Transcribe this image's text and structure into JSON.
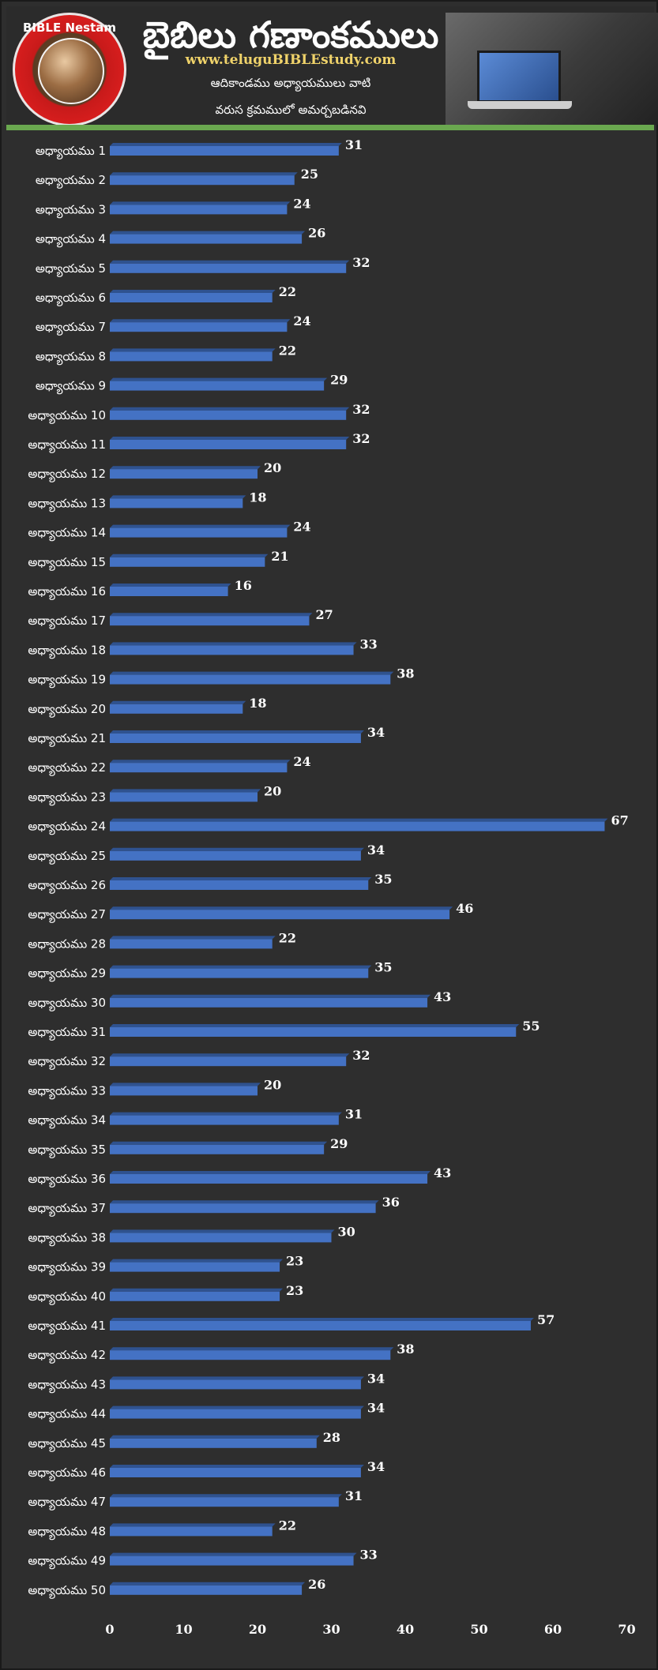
{
  "header": {
    "logo_text": "BIBLE Nestam",
    "title": "బైబిలు గణాంకములు",
    "site_url": "www.teluguBIBLEstudy.com",
    "subtitle_line1": "ఆదికాండము అధ్యాయములు వాటి",
    "subtitle_line2": "వరుస క్రమములో అమర్చబడినవి"
  },
  "colors": {
    "background": "#2e2e2e",
    "bar": "#4472c4",
    "bar_top": "#2f528f",
    "divider": "#6aa84f",
    "url": "#f0d36a"
  },
  "chart_data": {
    "type": "bar",
    "orientation": "horizontal",
    "categories": [
      "అధ్యాయము 1",
      "అధ్యాయము 2",
      "అధ్యాయము 3",
      "అధ్యాయము 4",
      "అధ్యాయము 5",
      "అధ్యాయము 6",
      "అధ్యాయము 7",
      "అధ్యాయము 8",
      "అధ్యాయము 9",
      "అధ్యాయము 10",
      "అధ్యాయము 11",
      "అధ్యాయము 12",
      "అధ్యాయము 13",
      "అధ్యాయము 14",
      "అధ్యాయము 15",
      "అధ్యాయము 16",
      "అధ్యాయము 17",
      "అధ్యాయము 18",
      "అధ్యాయము 19",
      "అధ్యాయము 20",
      "అధ్యాయము 21",
      "అధ్యాయము 22",
      "అధ్యాయము 23",
      "అధ్యాయము 24",
      "అధ్యాయము 25",
      "అధ్యాయము 26",
      "అధ్యాయము 27",
      "అధ్యాయము 28",
      "అధ్యాయము 29",
      "అధ్యాయము 30",
      "అధ్యాయము 31",
      "అధ్యాయము 32",
      "అధ్యాయము 33",
      "అధ్యాయము 34",
      "అధ్యాయము 35",
      "అధ్యాయము 36",
      "అధ్యాయము 37",
      "అధ్యాయము 38",
      "అధ్యాయము 39",
      "అధ్యాయము 40",
      "అధ్యాయము 41",
      "అధ్యాయము 42",
      "అధ్యాయము 43",
      "అధ్యాయము 44",
      "అధ్యాయము 45",
      "అధ్యాయము 46",
      "అధ్యాయము 47",
      "అధ్యాయము 48",
      "అధ్యాయము 49",
      "అధ్యాయము 50"
    ],
    "values": [
      31,
      25,
      24,
      26,
      32,
      22,
      24,
      22,
      29,
      32,
      32,
      20,
      18,
      24,
      21,
      16,
      27,
      33,
      38,
      18,
      34,
      24,
      20,
      67,
      34,
      35,
      46,
      22,
      35,
      43,
      55,
      32,
      20,
      31,
      29,
      43,
      36,
      30,
      23,
      23,
      57,
      38,
      34,
      34,
      28,
      34,
      31,
      22,
      33,
      26
    ],
    "xlim": [
      0,
      70
    ],
    "xticks": [
      0,
      10,
      20,
      30,
      40,
      50,
      60,
      70
    ],
    "data_labels": true,
    "grid": false,
    "legend": "none"
  }
}
